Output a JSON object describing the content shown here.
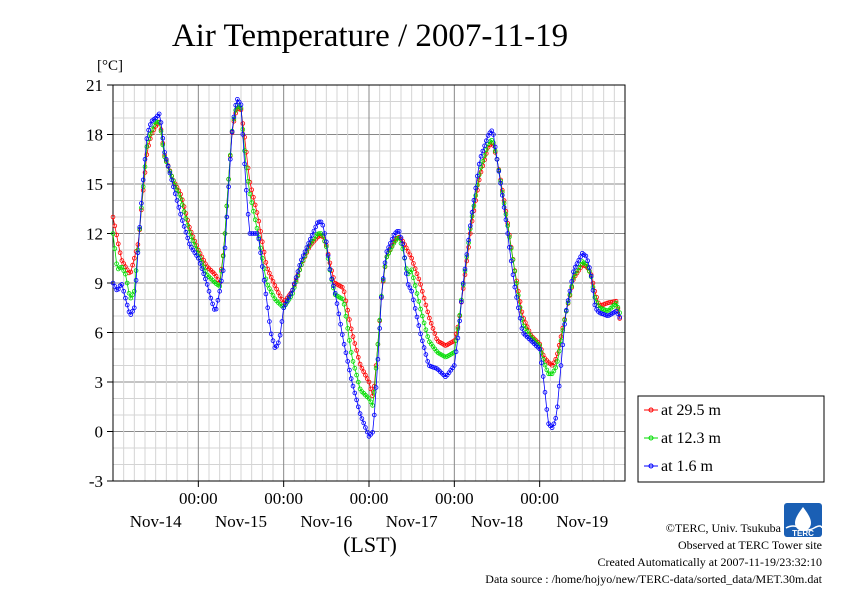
{
  "chart_data": {
    "type": "line",
    "title": "Air Temperature / 2007-11-19",
    "unit_label": "[°C]",
    "xlabel": "(LST)",
    "ylabel": "",
    "ylim": [
      -3,
      21
    ],
    "yticks": [
      -3,
      0,
      3,
      6,
      9,
      12,
      15,
      18,
      21
    ],
    "xlim": [
      0,
      6
    ],
    "x_unit": "days since Nov-14 00:00",
    "xticks": [
      {
        "pos": 1,
        "time": "00:00",
        "date": "Nov-15"
      },
      {
        "pos": 2,
        "time": "00:00",
        "date": "Nov-16"
      },
      {
        "pos": 3,
        "time": "00:00",
        "date": "Nov-17"
      },
      {
        "pos": 4,
        "time": "00:00",
        "date": "Nov-18"
      },
      {
        "pos": 5,
        "time": "00:00",
        "date": "Nov-19"
      }
    ],
    "day_labels": [
      {
        "pos": 0.5,
        "label": "Nov-14"
      },
      {
        "pos": 1.5,
        "label": "Nov-15"
      },
      {
        "pos": 2.5,
        "label": "Nov-16"
      },
      {
        "pos": 3.5,
        "label": "Nov-17"
      },
      {
        "pos": 4.5,
        "label": "Nov-18"
      },
      {
        "pos": 5.5,
        "label": "Nov-19"
      }
    ],
    "grid": true,
    "legend_position": "right-bottom",
    "series": [
      {
        "name": "at 29.5 m",
        "color": "#ff0000",
        "points": [
          [
            0,
            13
          ],
          [
            0.1,
            10.4
          ],
          [
            0.2,
            9.5
          ],
          [
            0.3,
            11.5
          ],
          [
            0.35,
            14.4
          ],
          [
            0.4,
            17
          ],
          [
            0.45,
            18
          ],
          [
            0.5,
            18.5
          ],
          [
            0.55,
            18.8
          ],
          [
            0.6,
            16.8
          ],
          [
            0.7,
            15.3
          ],
          [
            0.8,
            14.3
          ],
          [
            0.9,
            12.3
          ],
          [
            1.0,
            11
          ],
          [
            1.1,
            10
          ],
          [
            1.2,
            9.5
          ],
          [
            1.25,
            9
          ],
          [
            1.3,
            11
          ],
          [
            1.35,
            15
          ],
          [
            1.4,
            18.4
          ],
          [
            1.45,
            19.6
          ],
          [
            1.5,
            19.5
          ],
          [
            1.55,
            17.5
          ],
          [
            1.6,
            15.2
          ],
          [
            1.7,
            13
          ],
          [
            1.8,
            10
          ],
          [
            1.9,
            8.8
          ],
          [
            2.0,
            7.8
          ],
          [
            2.1,
            8.5
          ],
          [
            2.2,
            10
          ],
          [
            2.3,
            11.2
          ],
          [
            2.4,
            11.8
          ],
          [
            2.45,
            11.9
          ],
          [
            2.5,
            11.3
          ],
          [
            2.55,
            10
          ],
          [
            2.6,
            9
          ],
          [
            2.7,
            8.7
          ],
          [
            2.8,
            6
          ],
          [
            2.9,
            4
          ],
          [
            3.0,
            3
          ],
          [
            3.05,
            2
          ],
          [
            3.1,
            5
          ],
          [
            3.15,
            8.4
          ],
          [
            3.2,
            10.5
          ],
          [
            3.3,
            11.6
          ],
          [
            3.35,
            11.8
          ],
          [
            3.4,
            11.5
          ],
          [
            3.5,
            10.5
          ],
          [
            3.6,
            9
          ],
          [
            3.7,
            7
          ],
          [
            3.8,
            5.5
          ],
          [
            3.9,
            5.2
          ],
          [
            4.0,
            5.5
          ],
          [
            4.05,
            6.5
          ],
          [
            4.1,
            8.5
          ],
          [
            4.2,
            12.5
          ],
          [
            4.3,
            15.5
          ],
          [
            4.4,
            17.3
          ],
          [
            4.45,
            17.5
          ],
          [
            4.5,
            16.5
          ],
          [
            4.6,
            13.5
          ],
          [
            4.7,
            10
          ],
          [
            4.8,
            7
          ],
          [
            4.9,
            5.8
          ],
          [
            5.0,
            5.3
          ],
          [
            5.05,
            4.5
          ],
          [
            5.1,
            4.2
          ],
          [
            5.15,
            4
          ],
          [
            5.2,
            4.5
          ],
          [
            5.3,
            7
          ],
          [
            5.4,
            9.3
          ],
          [
            5.5,
            10.1
          ],
          [
            5.55,
            10
          ],
          [
            5.6,
            9.6
          ],
          [
            5.65,
            8.4
          ],
          [
            5.7,
            7.6
          ],
          [
            5.8,
            7.8
          ],
          [
            5.9,
            7.9
          ],
          [
            5.95,
            6.5
          ]
        ]
      },
      {
        "name": "at 12.3 m",
        "color": "#00dd00",
        "points": [
          [
            0,
            12
          ],
          [
            0.05,
            9.8
          ],
          [
            0.1,
            10
          ],
          [
            0.15,
            9.5
          ],
          [
            0.2,
            8
          ],
          [
            0.25,
            8.5
          ],
          [
            0.3,
            11.5
          ],
          [
            0.35,
            14.6
          ],
          [
            0.4,
            17.5
          ],
          [
            0.45,
            18.2
          ],
          [
            0.5,
            18.8
          ],
          [
            0.55,
            18.7
          ],
          [
            0.6,
            16.7
          ],
          [
            0.7,
            15.3
          ],
          [
            0.8,
            14
          ],
          [
            0.9,
            12
          ],
          [
            1.0,
            10.8
          ],
          [
            1.1,
            9.5
          ],
          [
            1.2,
            9
          ],
          [
            1.25,
            8.8
          ],
          [
            1.3,
            11
          ],
          [
            1.35,
            15
          ],
          [
            1.4,
            18.5
          ],
          [
            1.45,
            19.8
          ],
          [
            1.5,
            19.6
          ],
          [
            1.55,
            16.5
          ],
          [
            1.6,
            14.5
          ],
          [
            1.7,
            12
          ],
          [
            1.8,
            9
          ],
          [
            1.9,
            8
          ],
          [
            2.0,
            7.5
          ],
          [
            2.1,
            8.3
          ],
          [
            2.2,
            10
          ],
          [
            2.3,
            11.3
          ],
          [
            2.4,
            12
          ],
          [
            2.45,
            12
          ],
          [
            2.5,
            11.2
          ],
          [
            2.55,
            9.5
          ],
          [
            2.6,
            8.3
          ],
          [
            2.7,
            8
          ],
          [
            2.8,
            4.5
          ],
          [
            2.9,
            2.5
          ],
          [
            3.0,
            2
          ],
          [
            3.05,
            1.5
          ],
          [
            3.1,
            5
          ],
          [
            3.15,
            8.5
          ],
          [
            3.2,
            10.5
          ],
          [
            3.3,
            11.5
          ],
          [
            3.35,
            11.8
          ],
          [
            3.4,
            11
          ],
          [
            3.45,
            9.5
          ],
          [
            3.5,
            9.8
          ],
          [
            3.6,
            7.5
          ],
          [
            3.7,
            5.5
          ],
          [
            3.8,
            4.8
          ],
          [
            3.9,
            4.5
          ],
          [
            4.0,
            4.8
          ],
          [
            4.05,
            6.5
          ],
          [
            4.1,
            8.7
          ],
          [
            4.2,
            12.8
          ],
          [
            4.3,
            15.8
          ],
          [
            4.4,
            17.5
          ],
          [
            4.45,
            17.7
          ],
          [
            4.5,
            16.5
          ],
          [
            4.6,
            13.3
          ],
          [
            4.7,
            10
          ],
          [
            4.8,
            6.5
          ],
          [
            4.9,
            5.7
          ],
          [
            5.0,
            5.2
          ],
          [
            5.05,
            4.2
          ],
          [
            5.1,
            3.5
          ],
          [
            5.15,
            3.5
          ],
          [
            5.2,
            4
          ],
          [
            5.3,
            7
          ],
          [
            5.4,
            9.4
          ],
          [
            5.5,
            10.3
          ],
          [
            5.55,
            10.1
          ],
          [
            5.6,
            9.5
          ],
          [
            5.65,
            8
          ],
          [
            5.7,
            7.5
          ],
          [
            5.8,
            7.3
          ],
          [
            5.9,
            7.8
          ],
          [
            5.95,
            7
          ]
        ]
      },
      {
        "name": "at 1.6 m",
        "color": "#0000ff",
        "points": [
          [
            0,
            9
          ],
          [
            0.05,
            8.5
          ],
          [
            0.1,
            9
          ],
          [
            0.15,
            8
          ],
          [
            0.2,
            7
          ],
          [
            0.25,
            7.5
          ],
          [
            0.3,
            11.5
          ],
          [
            0.35,
            15
          ],
          [
            0.4,
            18
          ],
          [
            0.45,
            18.8
          ],
          [
            0.5,
            19
          ],
          [
            0.55,
            19.3
          ],
          [
            0.6,
            17
          ],
          [
            0.7,
            15
          ],
          [
            0.8,
            13
          ],
          [
            0.9,
            11.3
          ],
          [
            1.0,
            10.5
          ],
          [
            1.1,
            9
          ],
          [
            1.15,
            8
          ],
          [
            1.2,
            7.2
          ],
          [
            1.25,
            8.5
          ],
          [
            1.3,
            10
          ],
          [
            1.35,
            14.5
          ],
          [
            1.4,
            18.5
          ],
          [
            1.45,
            20.2
          ],
          [
            1.5,
            19.8
          ],
          [
            1.55,
            15.5
          ],
          [
            1.6,
            12
          ],
          [
            1.7,
            12
          ],
          [
            1.8,
            8
          ],
          [
            1.85,
            6
          ],
          [
            1.9,
            5
          ],
          [
            1.95,
            5.5
          ],
          [
            2.0,
            7.5
          ],
          [
            2.1,
            8.5
          ],
          [
            2.2,
            10.3
          ],
          [
            2.3,
            11.5
          ],
          [
            2.4,
            12.7
          ],
          [
            2.45,
            12.7
          ],
          [
            2.5,
            11.5
          ],
          [
            2.55,
            9.5
          ],
          [
            2.6,
            8.5
          ],
          [
            2.7,
            5.5
          ],
          [
            2.8,
            3
          ],
          [
            2.9,
            1
          ],
          [
            3.0,
            -0.3
          ],
          [
            3.05,
            0
          ],
          [
            3.1,
            4
          ],
          [
            3.15,
            8.5
          ],
          [
            3.2,
            10.8
          ],
          [
            3.3,
            12
          ],
          [
            3.35,
            12.2
          ],
          [
            3.4,
            11.3
          ],
          [
            3.45,
            9
          ],
          [
            3.5,
            8.5
          ],
          [
            3.6,
            6
          ],
          [
            3.7,
            4
          ],
          [
            3.8,
            3.8
          ],
          [
            3.9,
            3.3
          ],
          [
            4.0,
            4
          ],
          [
            4.05,
            6
          ],
          [
            4.1,
            8.8
          ],
          [
            4.2,
            13
          ],
          [
            4.3,
            16.5
          ],
          [
            4.4,
            18
          ],
          [
            4.45,
            18.3
          ],
          [
            4.5,
            16.5
          ],
          [
            4.6,
            13
          ],
          [
            4.7,
            9
          ],
          [
            4.8,
            6
          ],
          [
            4.9,
            5.5
          ],
          [
            5.0,
            5
          ],
          [
            5.05,
            3
          ],
          [
            5.1,
            0.5
          ],
          [
            5.15,
            0.2
          ],
          [
            5.2,
            1
          ],
          [
            5.3,
            7
          ],
          [
            5.4,
            9.8
          ],
          [
            5.5,
            10.8
          ],
          [
            5.55,
            10.6
          ],
          [
            5.6,
            9.6
          ],
          [
            5.65,
            7.5
          ],
          [
            5.7,
            7.2
          ],
          [
            5.8,
            7
          ],
          [
            5.9,
            7.3
          ],
          [
            5.95,
            6.8
          ]
        ]
      }
    ]
  },
  "footer": {
    "copyright": "©TERC, Univ. Tsukuba",
    "observed": "Observed at TERC Tower site",
    "created": "Created Automatically at 2007-11-19/23:32:10",
    "source": "Data source : /home/hojyo/new/TERC-data/sorted_data/MET.30m.dat",
    "logo_text": "TERC"
  }
}
